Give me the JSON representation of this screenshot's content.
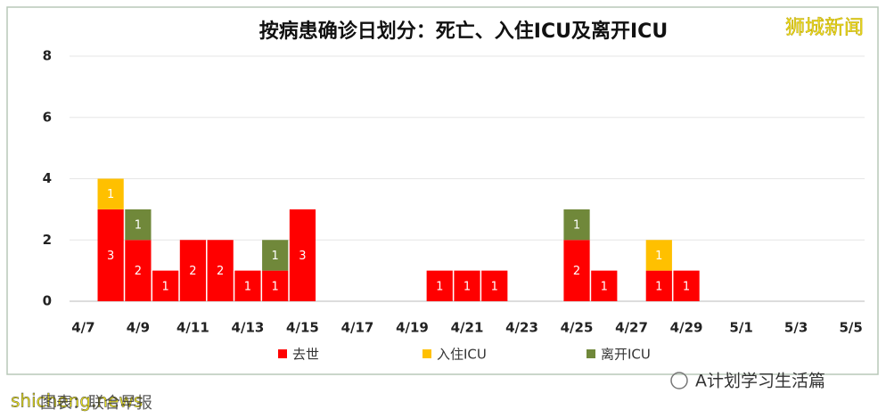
{
  "chart_data": {
    "type": "stacked-bar",
    "title": "按病患确诊日划分：死亡、入住ICU及离开ICU",
    "categories": [
      "4/7",
      null,
      "4/9",
      null,
      "4/11",
      null,
      "4/13",
      null,
      "4/15",
      null,
      "4/17",
      null,
      "4/19",
      null,
      "4/21",
      null,
      "4/23",
      null,
      "4/25",
      null,
      "4/27",
      null,
      "4/29",
      null,
      "5/1",
      null,
      "5/3",
      null,
      "5/5"
    ],
    "series": [
      {
        "name": "去世",
        "color": "#ff0000",
        "values": [
          0,
          3,
          2,
          1,
          2,
          2,
          1,
          1,
          3,
          0,
          0,
          0,
          0,
          1,
          1,
          1,
          0,
          0,
          2,
          1,
          0,
          1,
          1,
          0,
          0,
          0,
          0,
          0,
          0
        ]
      },
      {
        "name": "入住ICU",
        "color": "#ffc000",
        "values": [
          0,
          1,
          0,
          0,
          0,
          0,
          0,
          0,
          0,
          0,
          0,
          0,
          0,
          0,
          0,
          0,
          0,
          0,
          0,
          0,
          0,
          1,
          0,
          0,
          0,
          0,
          0,
          0,
          0
        ]
      },
      {
        "name": "离开ICU",
        "color": "#70883a",
        "values": [
          0,
          0,
          1,
          0,
          0,
          0,
          0,
          1,
          0,
          0,
          0,
          0,
          0,
          0,
          0,
          0,
          0,
          0,
          1,
          0,
          0,
          0,
          0,
          0,
          0,
          0,
          0,
          0,
          0
        ]
      }
    ],
    "ylim": [
      0,
      8
    ],
    "yticks": [
      0,
      2,
      4,
      6,
      8
    ],
    "grid": true
  },
  "watermark": "狮城新闻",
  "site": "shicheng.news",
  "source": "图表：联合早报",
  "account": "A计划学习生活篇"
}
